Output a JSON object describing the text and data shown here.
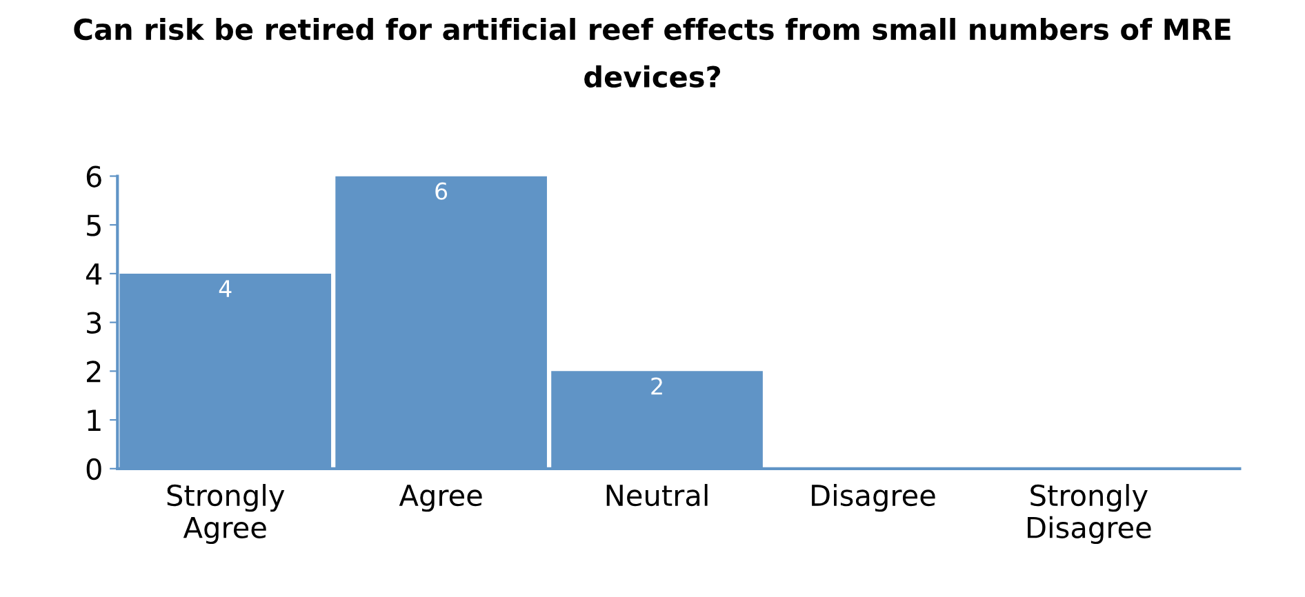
{
  "chart_data": {
    "type": "bar",
    "title": "Can risk be retired for artificial reef effects from small numbers of MRE devices?",
    "categories": [
      "Strongly Agree",
      "Agree",
      "Neutral",
      "Disagree",
      "Strongly Disagree"
    ],
    "values": [
      4,
      6,
      2,
      0,
      0
    ],
    "value_labels": [
      "4",
      "6",
      "2",
      null,
      null
    ],
    "color": "#6094c6",
    "ylim": [
      0,
      6
    ],
    "yticks": [
      0,
      1,
      2,
      3,
      4,
      5,
      6
    ],
    "grid": false,
    "legend": false
  }
}
